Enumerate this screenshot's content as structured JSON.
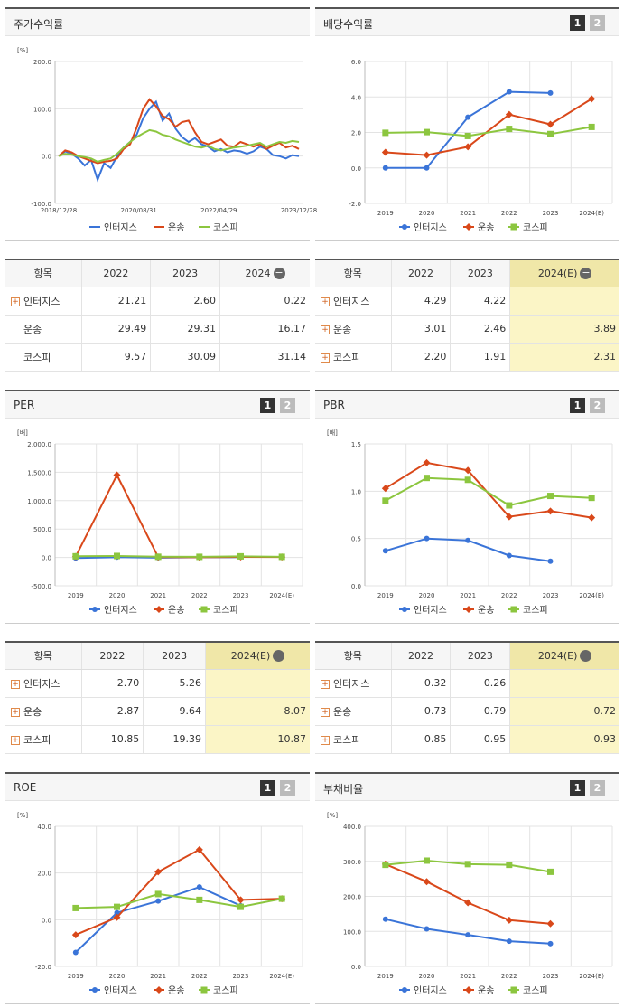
{
  "legend": [
    "인터지스",
    "운송",
    "코스피"
  ],
  "colors": {
    "s0": "#3a74d8",
    "s1": "#d9481a",
    "s2": "#8cc63f",
    "grid": "#e3e3e3"
  },
  "icons": {
    "expand": "plus-box-icon",
    "collapse": "minus-circle-icon"
  },
  "buttons": {
    "b1": "1",
    "b2": "2"
  },
  "stock": {
    "title": "주가수익률",
    "table": {
      "headers": [
        "항목",
        "2022",
        "2023",
        "2024"
      ],
      "rows": [
        [
          "인터지스",
          "21.21",
          "2.60",
          "0.22"
        ],
        [
          "운송",
          "29.49",
          "29.31",
          "16.17"
        ],
        [
          "코스피",
          "9.57",
          "30.09",
          "31.14"
        ]
      ]
    }
  },
  "dividend": {
    "title": "배당수익률",
    "table": {
      "headers": [
        "항목",
        "2022",
        "2023",
        "2024(E)"
      ],
      "rows": [
        [
          "인터지스",
          "4.29",
          "4.22",
          ""
        ],
        [
          "운송",
          "3.01",
          "2.46",
          "3.89"
        ],
        [
          "코스피",
          "2.20",
          "1.91",
          "2.31"
        ]
      ]
    }
  },
  "per": {
    "title": "PER",
    "table": {
      "headers": [
        "항목",
        "2022",
        "2023",
        "2024(E)"
      ],
      "rows": [
        [
          "인터지스",
          "2.70",
          "5.26",
          ""
        ],
        [
          "운송",
          "2.87",
          "9.64",
          "8.07"
        ],
        [
          "코스피",
          "10.85",
          "19.39",
          "10.87"
        ]
      ]
    }
  },
  "pbr": {
    "title": "PBR",
    "table": {
      "headers": [
        "항목",
        "2022",
        "2023",
        "2024(E)"
      ],
      "rows": [
        [
          "인터지스",
          "0.32",
          "0.26",
          ""
        ],
        [
          "운송",
          "0.73",
          "0.79",
          "0.72"
        ],
        [
          "코스피",
          "0.85",
          "0.95",
          "0.93"
        ]
      ]
    }
  },
  "roe": {
    "title": "ROE"
  },
  "debt": {
    "title": "부채비율"
  },
  "chart_data": [
    {
      "id": "stock",
      "type": "line",
      "unit": "[%]",
      "x_ticks": [
        "2018/12/28",
        "2020/08/31",
        "2022/04/29",
        "2023/12/28"
      ],
      "y_ticks": [
        "200.0",
        "100.0",
        "0.0",
        "-100.0"
      ],
      "ylim": [
        -100,
        200
      ],
      "series": [
        {
          "name": "인터지스",
          "values": [
            0,
            10,
            5,
            -5,
            -20,
            -8,
            -50,
            -15,
            -25,
            0,
            18,
            30,
            45,
            80,
            100,
            115,
            75,
            90,
            58,
            40,
            30,
            38,
            25,
            20,
            10,
            15,
            8,
            12,
            10,
            5,
            10,
            20,
            15,
            2,
            0,
            -5,
            2,
            0
          ]
        },
        {
          "name": "운송",
          "values": [
            0,
            12,
            8,
            0,
            -5,
            -10,
            -15,
            -12,
            -10,
            -5,
            15,
            25,
            60,
            100,
            120,
            105,
            85,
            78,
            62,
            72,
            75,
            50,
            30,
            25,
            30,
            35,
            22,
            20,
            30,
            25,
            20,
            25,
            15,
            22,
            28,
            18,
            22,
            15
          ]
        },
        {
          "name": "코스피",
          "values": [
            0,
            5,
            3,
            0,
            -2,
            -5,
            -12,
            -8,
            -5,
            5,
            18,
            30,
            40,
            48,
            55,
            52,
            45,
            42,
            35,
            30,
            25,
            20,
            18,
            22,
            15,
            12,
            15,
            18,
            20,
            22,
            25,
            28,
            20,
            25,
            30,
            28,
            32,
            30
          ]
        }
      ]
    },
    {
      "id": "dividend",
      "type": "line",
      "unit": "",
      "categories": [
        "2019",
        "2020",
        "2021",
        "2022",
        "2023",
        "2024(E)"
      ],
      "y_ticks": [
        "6.0",
        "4.0",
        "2.0",
        "0.0",
        "-2.0"
      ],
      "ylim": [
        -2,
        6
      ],
      "series": [
        {
          "name": "인터지스",
          "values": [
            0.0,
            0.0,
            2.86,
            4.29,
            4.22,
            null
          ]
        },
        {
          "name": "운송",
          "values": [
            0.88,
            0.72,
            1.19,
            3.01,
            2.46,
            3.89
          ]
        },
        {
          "name": "코스피",
          "values": [
            1.98,
            2.02,
            1.8,
            2.2,
            1.91,
            2.31
          ]
        }
      ]
    },
    {
      "id": "per",
      "type": "line",
      "unit": "[배]",
      "categories": [
        "2019",
        "2020",
        "2021",
        "2022",
        "2023",
        "2024(E)"
      ],
      "y_ticks": [
        "2,000.0",
        "1,500.0",
        "1,000.0",
        "500.0",
        "0.0",
        "-500.0"
      ],
      "ylim": [
        -500,
        2000
      ],
      "series": [
        {
          "name": "인터지스",
          "values": [
            -10,
            5,
            -5,
            2.7,
            5.26,
            null
          ]
        },
        {
          "name": "운송",
          "values": [
            15,
            1450,
            5,
            2.87,
            9.64,
            8.07
          ]
        },
        {
          "name": "코스피",
          "values": [
            20,
            26,
            12,
            10.85,
            19.39,
            10.87
          ]
        }
      ]
    },
    {
      "id": "pbr",
      "type": "line",
      "unit": "[배]",
      "categories": [
        "2019",
        "2020",
        "2021",
        "2022",
        "2023",
        "2024(E)"
      ],
      "y_ticks": [
        "1.5",
        "1.0",
        "0.5",
        "0.0"
      ],
      "ylim": [
        0,
        1.5
      ],
      "series": [
        {
          "name": "인터지스",
          "values": [
            0.37,
            0.5,
            0.48,
            0.32,
            0.26,
            null
          ]
        },
        {
          "name": "운송",
          "values": [
            1.03,
            1.3,
            1.22,
            0.73,
            0.79,
            0.72
          ]
        },
        {
          "name": "코스피",
          "values": [
            0.9,
            1.14,
            1.12,
            0.85,
            0.95,
            0.93
          ]
        }
      ]
    },
    {
      "id": "roe",
      "type": "line",
      "unit": "[%]",
      "categories": [
        "2019",
        "2020",
        "2021",
        "2022",
        "2023",
        "2024(E)"
      ],
      "y_ticks": [
        "40.0",
        "20.0",
        "0.0",
        "-20.0"
      ],
      "ylim": [
        -20,
        40
      ],
      "series": [
        {
          "name": "인터지스",
          "values": [
            -14,
            3,
            8,
            14,
            6,
            null
          ]
        },
        {
          "name": "운송",
          "values": [
            -6.5,
            1,
            20.5,
            30,
            8.5,
            9
          ]
        },
        {
          "name": "코스피",
          "values": [
            5,
            5.5,
            11,
            8.5,
            5.5,
            9
          ]
        }
      ]
    },
    {
      "id": "debt",
      "type": "line",
      "unit": "[%]",
      "categories": [
        "2019",
        "2020",
        "2021",
        "2022",
        "2023",
        "2024(E)"
      ],
      "y_ticks": [
        "400.0",
        "300.0",
        "200.0",
        "100.0",
        "0.0"
      ],
      "ylim": [
        0,
        400
      ],
      "series": [
        {
          "name": "인터지스",
          "values": [
            135,
            107,
            90,
            72,
            65,
            null
          ]
        },
        {
          "name": "운송",
          "values": [
            292,
            242,
            182,
            132,
            122,
            null
          ]
        },
        {
          "name": "코스피",
          "values": [
            290,
            302,
            292,
            290,
            270,
            null
          ]
        }
      ]
    }
  ]
}
